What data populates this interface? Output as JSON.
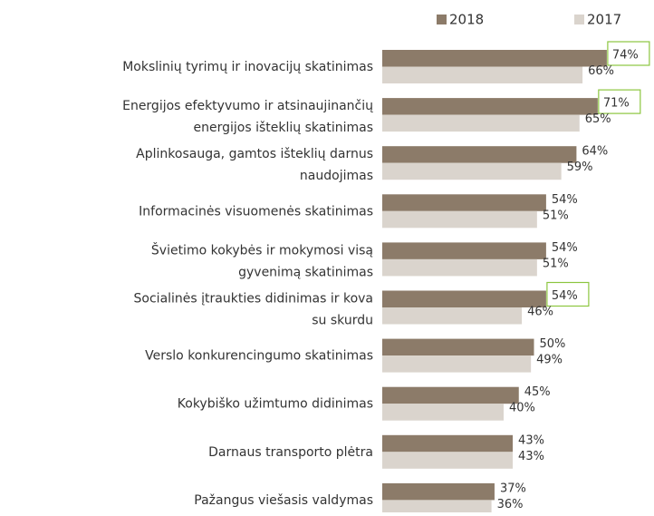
{
  "chart_data": {
    "type": "bar",
    "orientation": "horizontal",
    "categories": [
      "Mokslinių tyrimų ir inovacijų skatinimas",
      "Energijos efektyvumo ir atsinaujinančių\nenergijos išteklių skatinimas",
      "Aplinkosauga, gamtos išteklių darnus\nnaudojimas",
      "Informacinės visuomenės skatinimas",
      "Švietimo kokybės ir mokymosi visą\ngyvenimą skatinimas",
      "Socialinės įtraukties didinimas ir kova\nsu skurdu",
      "Verslo konkurencingumo skatinimas",
      "Kokybiško užimtumo didinimas",
      "Darnaus transporto plėtra",
      "Pažangus viešasis valdymas"
    ],
    "series": [
      {
        "name": "2018",
        "color": "#8c7b69",
        "values": [
          74,
          71,
          64,
          54,
          54,
          54,
          50,
          45,
          43,
          37
        ],
        "value_labels": [
          "74%",
          "71%",
          "64%",
          "54%",
          "54%",
          "54%",
          "50%",
          "45%",
          "43%",
          "37%"
        ],
        "highlighted": [
          0,
          1,
          5
        ],
        "highlight_color": "#8cc63f"
      },
      {
        "name": "2017",
        "color": "#dad4cd",
        "values": [
          66,
          65,
          59,
          51,
          51,
          46,
          49,
          40,
          43,
          36
        ],
        "value_labels": [
          "66%",
          "65%",
          "59%",
          "51%",
          "51%",
          "46%",
          "49%",
          "40%",
          "43%",
          "36%"
        ]
      }
    ]
  }
}
